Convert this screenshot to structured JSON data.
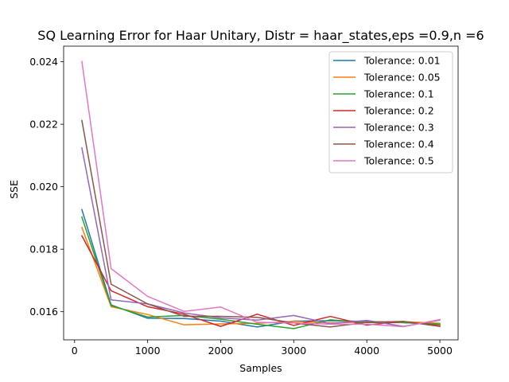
{
  "chart_data": {
    "type": "line",
    "title": "SQ Learning Error for Haar Unitary, Distr = haar_states,eps =0.9,n =6",
    "xlabel": "Samples",
    "ylabel": "SSE",
    "xlim": [
      -150,
      5250
    ],
    "ylim": [
      0.0151,
      0.0245
    ],
    "x_ticks": [
      0,
      1000,
      2000,
      3000,
      4000,
      5000
    ],
    "x_tick_labels": [
      "0",
      "1000",
      "2000",
      "3000",
      "4000",
      "5000"
    ],
    "y_ticks": [
      0.016,
      0.018,
      0.02,
      0.022,
      0.024
    ],
    "y_tick_labels": [
      "0.016",
      "0.018",
      "0.020",
      "0.022",
      "0.024"
    ],
    "grid": false,
    "legend_position": "top-right",
    "x": [
      100,
      500,
      1000,
      1500,
      2000,
      2500,
      3000,
      3500,
      4000,
      4500,
      5000
    ],
    "series": [
      {
        "name": "Tolerance: 0.01",
        "color": "#1f77b4",
        "values": [
          0.01927,
          0.01622,
          0.01579,
          0.01578,
          0.0157,
          0.01551,
          0.0157,
          0.01571,
          0.01569,
          0.01565,
          0.0156
        ]
      },
      {
        "name": "Tolerance: 0.05",
        "color": "#ff7f0e",
        "values": [
          0.0187,
          0.01616,
          0.01591,
          0.01558,
          0.01561,
          0.01563,
          0.01569,
          0.01564,
          0.01567,
          0.01568,
          0.01563
        ]
      },
      {
        "name": "Tolerance: 0.1",
        "color": "#2ca02c",
        "values": [
          0.01903,
          0.0162,
          0.01583,
          0.01588,
          0.01576,
          0.0156,
          0.01546,
          0.01574,
          0.01565,
          0.01565,
          0.0156
        ]
      },
      {
        "name": "Tolerance: 0.2",
        "color": "#d62728",
        "values": [
          0.01843,
          0.01667,
          0.01616,
          0.01592,
          0.01553,
          0.01592,
          0.01556,
          0.01585,
          0.01557,
          0.01569,
          0.01555
        ]
      },
      {
        "name": "Tolerance: 0.3",
        "color": "#9467bd",
        "values": [
          0.02124,
          0.01638,
          0.01625,
          0.01596,
          0.0158,
          0.01573,
          0.01588,
          0.01562,
          0.01572,
          0.01553,
          0.01573
        ]
      },
      {
        "name": "Tolerance: 0.4",
        "color": "#8c564b",
        "values": [
          0.02212,
          0.01688,
          0.01625,
          0.01585,
          0.01585,
          0.01582,
          0.01564,
          0.01551,
          0.01566,
          0.01569,
          0.01553
        ]
      },
      {
        "name": "Tolerance: 0.5",
        "color": "#e377c2",
        "values": [
          0.02401,
          0.01738,
          0.01649,
          0.01601,
          0.01615,
          0.01566,
          0.01564,
          0.0156,
          0.0156,
          0.01552,
          0.01575
        ]
      }
    ]
  }
}
